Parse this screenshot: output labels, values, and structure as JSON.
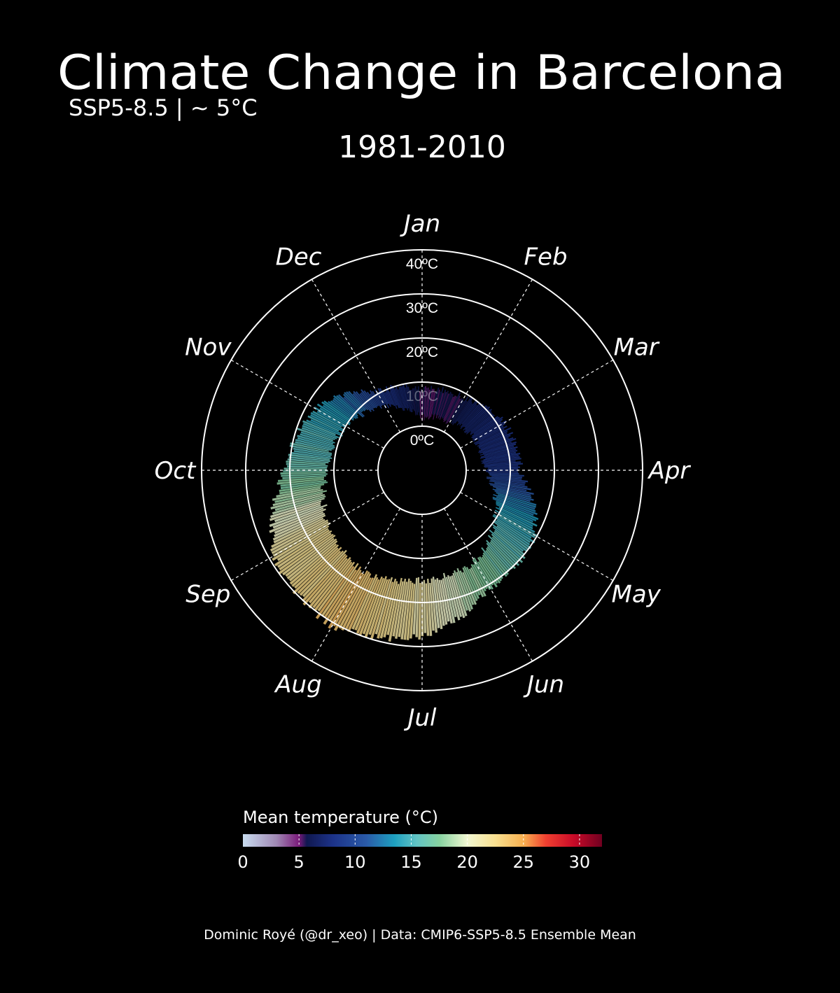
{
  "title": "Climate Change in Barcelona",
  "subtitle": "SSP5-8.5 | ~ 5°C",
  "period": "1981-2010",
  "caption": "Dominic Royé (@dr_xeo) | Data: CMIP6-SSP5-8.5 Ensemble Mean",
  "chart_data": {
    "type": "polar-bar",
    "angular_axis": {
      "labels": [
        "Jan",
        "Feb",
        "Mar",
        "Apr",
        "May",
        "Jun",
        "Jul",
        "Aug",
        "Sep",
        "Oct",
        "Nov",
        "Dec"
      ],
      "direction": "clockwise",
      "start": "top"
    },
    "radial_axis": {
      "ticks": [
        0,
        10,
        20,
        30,
        40
      ],
      "tick_labels": [
        "0ºC",
        "10ºC",
        "20ºC",
        "30ºC",
        "40ºC"
      ],
      "range": [
        -10,
        40
      ]
    },
    "series": {
      "months": [
        "Jan",
        "Feb",
        "Mar",
        "Apr",
        "May",
        "Jun",
        "Jul",
        "Aug",
        "Sep",
        "Oct",
        "Nov",
        "Dec"
      ],
      "min_temp": [
        2.0,
        2.7,
        4.0,
        4.3,
        9.5,
        14.0,
        15.0,
        16.5,
        14.6,
        11.6,
        10.0,
        6.5
      ],
      "max_temp": [
        8.5,
        9.0,
        11.5,
        12.2,
        19.8,
        20.8,
        27.8,
        30.8,
        28.7,
        21.0,
        17.8,
        10.6
      ]
    },
    "colorbar": {
      "title": "Mean temperature (°C)",
      "ticks": [
        0,
        5,
        10,
        15,
        20,
        25,
        30
      ],
      "tick_labels": [
        "0",
        "5",
        "10",
        "15",
        "20",
        "25",
        "30"
      ],
      "range": [
        0,
        32
      ],
      "stops": [
        {
          "v": 0,
          "c": "#c8dcef"
        },
        {
          "v": 3,
          "c": "#a088b4"
        },
        {
          "v": 5,
          "c": "#7a1a7a"
        },
        {
          "v": 5.7,
          "c": "#101850"
        },
        {
          "v": 8,
          "c": "#1c3288"
        },
        {
          "v": 11,
          "c": "#2a5aa8"
        },
        {
          "v": 13.5,
          "c": "#1ea0c0"
        },
        {
          "v": 15.5,
          "c": "#62c4c4"
        },
        {
          "v": 17.5,
          "c": "#86d2a0"
        },
        {
          "v": 20,
          "c": "#f2f8d2"
        },
        {
          "v": 22.5,
          "c": "#f8e090"
        },
        {
          "v": 25,
          "c": "#f8b050"
        },
        {
          "v": 27,
          "c": "#f04030"
        },
        {
          "v": 29.5,
          "c": "#c80a28"
        },
        {
          "v": 32,
          "c": "#700020"
        }
      ]
    },
    "grid": true
  }
}
